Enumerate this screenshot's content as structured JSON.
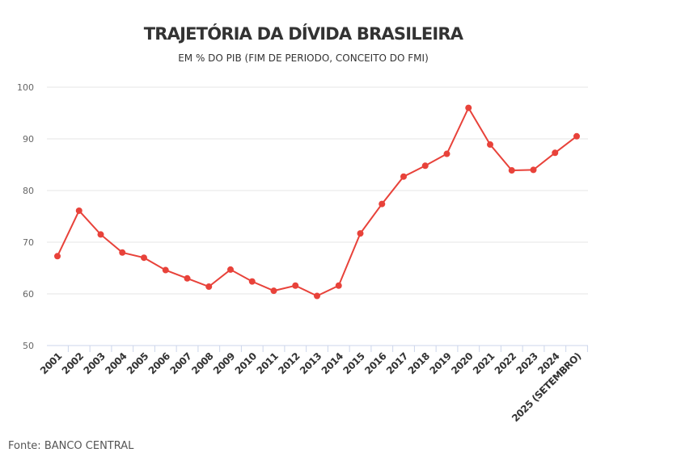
{
  "chart_data": {
    "type": "line",
    "title": "TRAJETÓRIA DA DÍVIDA BRASILEIRA",
    "subtitle": "EM % DO PIB (FIM DE PERIODO, CONCEITO DO FMI)",
    "xlabel": "",
    "ylabel": "",
    "ylim": [
      50,
      100
    ],
    "yticks": [
      50,
      60,
      70,
      80,
      90,
      100
    ],
    "grid": true,
    "categories": [
      "2001",
      "2002",
      "2003",
      "2004",
      "2005",
      "2006",
      "2007",
      "2008",
      "2009",
      "2010",
      "2011",
      "2012",
      "2013",
      "2014",
      "2015",
      "2016",
      "2017",
      "2018",
      "2019",
      "2020",
      "2021",
      "2022",
      "2023",
      "2024",
      "2025 (SETEMBRO)"
    ],
    "series": [
      {
        "name": "Dívida",
        "color": "#e8423a",
        "values": [
          67.3,
          76.1,
          71.5,
          68.0,
          67.0,
          64.6,
          63.0,
          61.4,
          64.7,
          62.4,
          60.6,
          61.6,
          59.6,
          61.6,
          71.7,
          77.4,
          82.7,
          84.8,
          87.1,
          96.0,
          88.9,
          83.9,
          84.0,
          87.3,
          90.5
        ]
      }
    ]
  },
  "source": "Fonte: BANCO CENTRAL"
}
